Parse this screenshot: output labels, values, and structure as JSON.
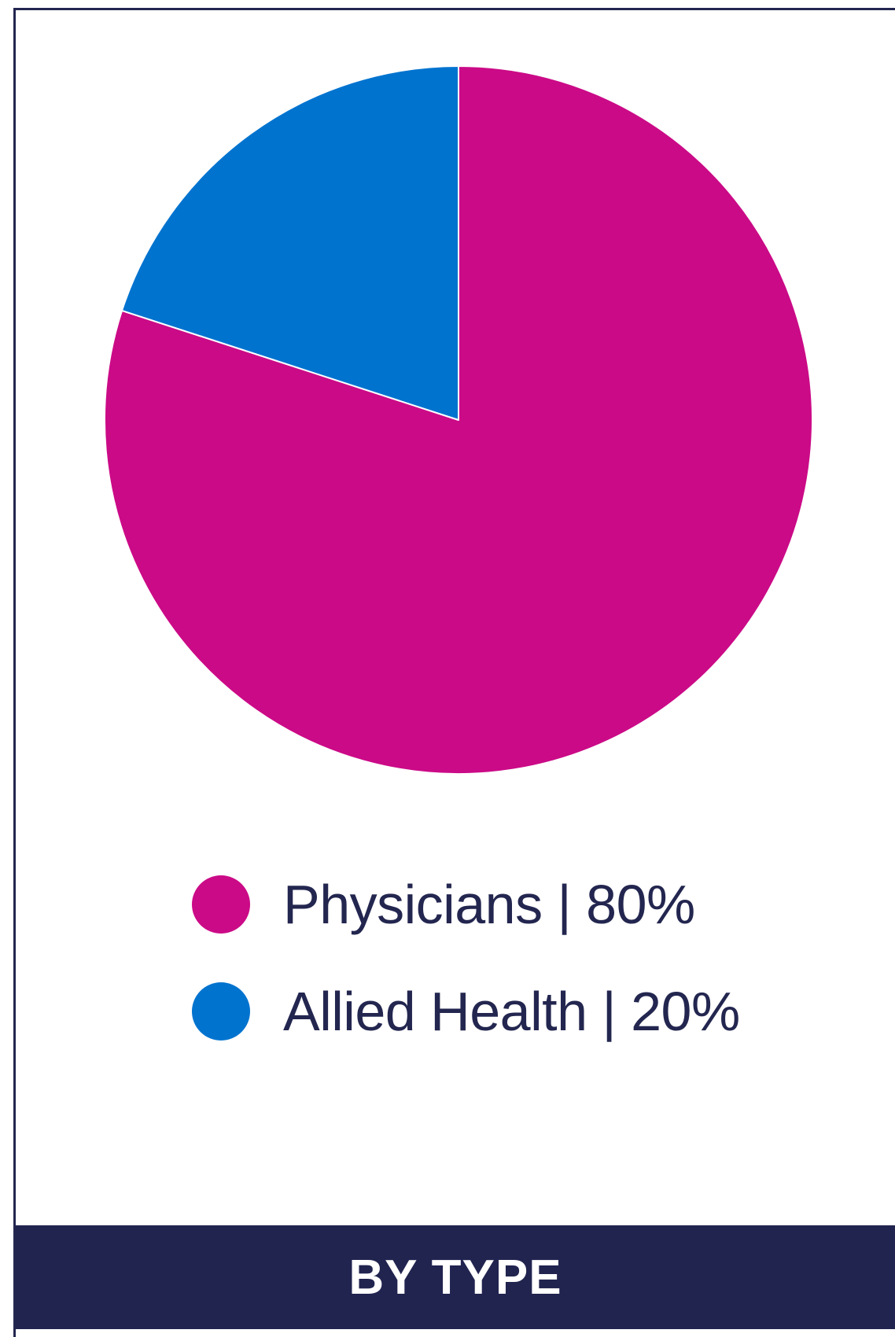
{
  "chart_data": {
    "type": "pie",
    "title": "BY TYPE",
    "slices": [
      {
        "label": "Physicians",
        "value": 80,
        "display": "Physicians | 80%",
        "color": "#cb0a87"
      },
      {
        "label": "Allied Health",
        "value": 20,
        "display": "Allied Health | 20%",
        "color": "#0073cf"
      }
    ],
    "legend_position": "bottom",
    "start_angle": "12 o'clock",
    "direction": "clockwise"
  },
  "colors": {
    "border": "#23264f",
    "footer_background": "#21244f",
    "footer_text": "#ffffff",
    "legend_text": "#23264f"
  }
}
